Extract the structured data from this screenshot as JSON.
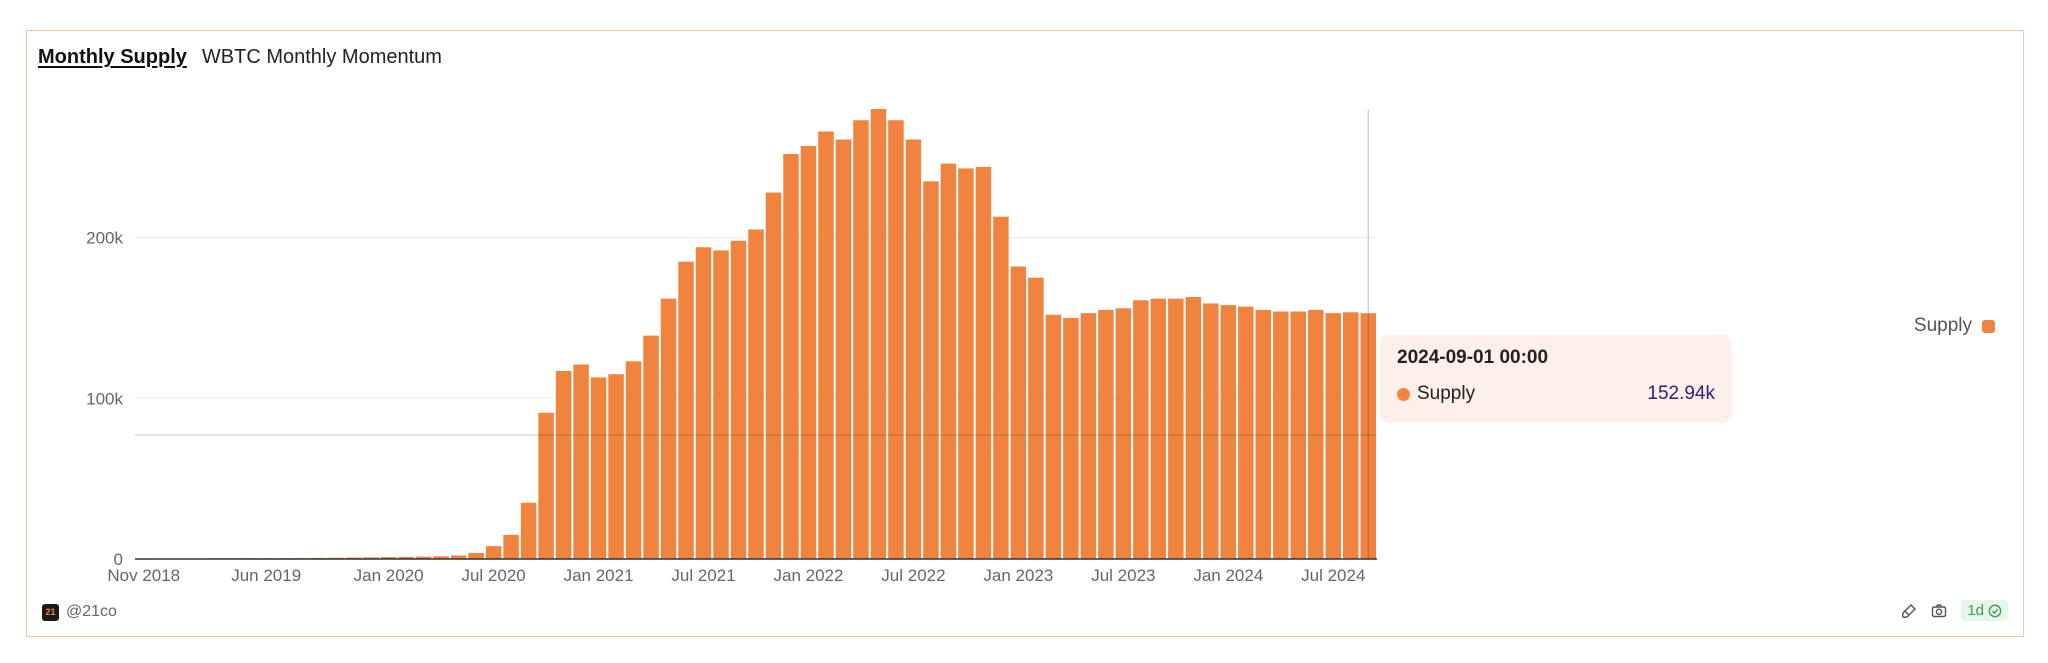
{
  "tabs": [
    {
      "label": "Monthly Supply",
      "active": true
    },
    {
      "label": "WBTC Monthly Momentum",
      "active": false
    }
  ],
  "footer": {
    "handle": "@21co",
    "logo_text": "21",
    "interval": "1d"
  },
  "tooltip": {
    "date": "2024-09-01 00:00",
    "series": "Supply",
    "value": "152.94k"
  },
  "colors": {
    "bar": "#f0843f",
    "accent_border": "#f0c6ad",
    "tooltip_value": "#2a1f7a",
    "badge": "#3aa14f"
  },
  "icons": [
    "brush-icon",
    "camera-icon",
    "check-circle-icon"
  ],
  "chart_data": {
    "type": "bar",
    "title": "",
    "xlabel": "",
    "ylabel": "",
    "ylim": [
      0,
      280000
    ],
    "y_ticks": [
      {
        "value": 0,
        "label": "0"
      },
      {
        "value": 100000,
        "label": "100k"
      },
      {
        "value": 200000,
        "label": "200k"
      }
    ],
    "x_ticks": [
      "Nov 2018",
      "Jun 2019",
      "Jan 2020",
      "Jul 2020",
      "Jan 2021",
      "Jul 2021",
      "Jan 2022",
      "Jul 2022",
      "Jan 2023",
      "Jul 2023",
      "Jan 2024",
      "Jul 2024"
    ],
    "legend": {
      "position": "right",
      "entries": [
        "Supply"
      ]
    },
    "grid": true,
    "categories": [
      "2018-11",
      "2018-12",
      "2019-01",
      "2019-02",
      "2019-03",
      "2019-04",
      "2019-05",
      "2019-06",
      "2019-07",
      "2019-08",
      "2019-09",
      "2019-10",
      "2019-11",
      "2019-12",
      "2020-01",
      "2020-02",
      "2020-03",
      "2020-04",
      "2020-05",
      "2020-06",
      "2020-07",
      "2020-08",
      "2020-09",
      "2020-10",
      "2020-11",
      "2020-12",
      "2021-01",
      "2021-02",
      "2021-03",
      "2021-04",
      "2021-05",
      "2021-06",
      "2021-07",
      "2021-08",
      "2021-09",
      "2021-10",
      "2021-11",
      "2021-12",
      "2022-01",
      "2022-02",
      "2022-03",
      "2022-04",
      "2022-05",
      "2022-06",
      "2022-07",
      "2022-08",
      "2022-09",
      "2022-10",
      "2022-11",
      "2022-12",
      "2023-01",
      "2023-02",
      "2023-03",
      "2023-04",
      "2023-05",
      "2023-06",
      "2023-07",
      "2023-08",
      "2023-09",
      "2023-10",
      "2023-11",
      "2023-12",
      "2024-01",
      "2024-02",
      "2024-03",
      "2024-04",
      "2024-05",
      "2024-06",
      "2024-07",
      "2024-08",
      "2024-09"
    ],
    "series": [
      {
        "name": "Supply",
        "values": [
          100,
          200,
          300,
          300,
          400,
          400,
          500,
          500,
          500,
          600,
          700,
          800,
          900,
          1000,
          1200,
          1300,
          1500,
          1700,
          2200,
          3800,
          8000,
          15000,
          35000,
          91000,
          117000,
          121000,
          113000,
          115000,
          123000,
          139000,
          162000,
          185000,
          194000,
          192000,
          198000,
          205000,
          228000,
          252000,
          257000,
          266000,
          261000,
          273000,
          280000,
          273000,
          261000,
          235000,
          246000,
          243000,
          244000,
          213000,
          182000,
          175000,
          152000,
          150000,
          153000,
          155000,
          156000,
          161000,
          162000,
          162000,
          163000,
          159000,
          158000,
          157000,
          155000,
          154000,
          154000,
          155000,
          153000,
          153500,
          152940
        ]
      }
    ]
  }
}
